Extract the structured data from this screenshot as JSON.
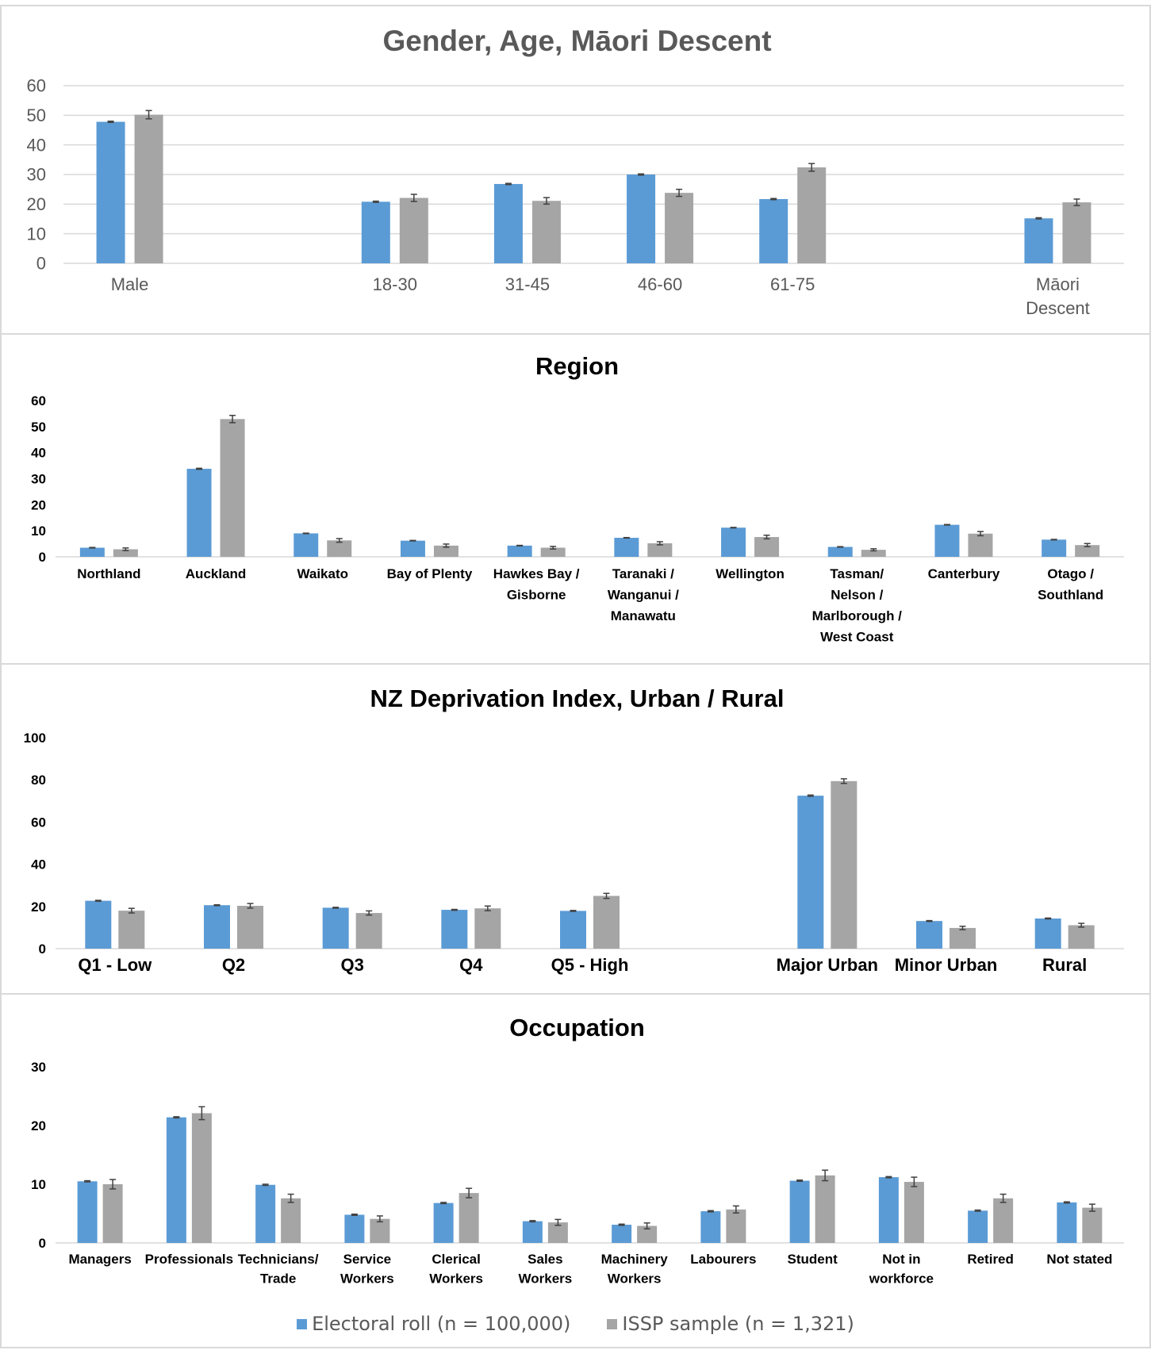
{
  "colors": {
    "electoral": "#5b9bd5",
    "issp": "#a5a5a5",
    "grid": "#d9d9d9",
    "text": "#595959",
    "label": "#000000"
  },
  "legend": {
    "electoral": "Electoral roll (n = 100,000)",
    "issp": "ISSP sample (n = 1,321)"
  },
  "chart_data": [
    {
      "type": "bar",
      "title": "Gender, Age, Māori Descent",
      "categories": [
        "Male",
        "",
        "18-30",
        "31-45",
        "46-60",
        "61-75",
        "",
        "Māori Descent"
      ],
      "ylim": [
        0,
        60
      ],
      "yticks": [
        0,
        10,
        20,
        30,
        40,
        50,
        60
      ],
      "grid": true,
      "series": [
        {
          "name": "Electoral roll (n = 100,000)",
          "values": [
            47.8,
            null,
            20.8,
            26.8,
            30.0,
            21.7,
            null,
            15.2
          ],
          "error": [
            0.2,
            null,
            0.2,
            0.2,
            0.2,
            0.2,
            null,
            0.2
          ]
        },
        {
          "name": "ISSP sample (n = 1,321)",
          "values": [
            50.2,
            null,
            22.1,
            21.1,
            23.8,
            32.4,
            null,
            20.6
          ],
          "error": [
            1.4,
            null,
            1.2,
            1.1,
            1.2,
            1.3,
            null,
            1.1
          ]
        }
      ]
    },
    {
      "type": "bar",
      "title": "Region",
      "categories": [
        "Northland",
        "Auckland",
        "Waikato",
        "Bay of Plenty",
        "Hawkes Bay / Gisborne",
        "Taranaki / Wanganui / Manawatu",
        "Wellington",
        "Tasman/ Nelson / Marlborough / West Coast",
        "Canterbury",
        "Otago / Southland"
      ],
      "ylim": [
        0,
        60
      ],
      "yticks": [
        0,
        10,
        20,
        30,
        40,
        50,
        60
      ],
      "grid": false,
      "series": [
        {
          "name": "Electoral roll (n = 100,000)",
          "values": [
            3.5,
            33.8,
            9.0,
            6.2,
            4.3,
            7.3,
            11.2,
            3.8,
            12.3,
            6.6
          ],
          "error": [
            0.1,
            0.2,
            0.1,
            0.1,
            0.1,
            0.1,
            0.1,
            0.1,
            0.1,
            0.1
          ]
        },
        {
          "name": "ISSP sample (n = 1,321)",
          "values": [
            2.9,
            52.9,
            6.3,
            4.3,
            3.5,
            5.2,
            7.6,
            2.7,
            8.9,
            4.5
          ],
          "error": [
            0.5,
            1.4,
            0.7,
            0.6,
            0.5,
            0.6,
            0.7,
            0.4,
            0.8,
            0.6
          ]
        }
      ]
    },
    {
      "type": "bar",
      "title": "NZ Deprivation Index, Urban / Rural",
      "categories": [
        "Q1 - Low",
        "Q2",
        "Q3",
        "Q4",
        "Q5 - High",
        "",
        "Major Urban",
        "Minor Urban",
        "Rural"
      ],
      "ylim": [
        0,
        100
      ],
      "yticks": [
        0,
        20,
        40,
        60,
        80,
        100
      ],
      "grid": false,
      "series": [
        {
          "name": "Electoral roll (n = 100,000)",
          "values": [
            22.7,
            20.6,
            19.4,
            18.4,
            17.9,
            null,
            72.5,
            13.1,
            14.3
          ],
          "error": [
            0.2,
            0.2,
            0.2,
            0.2,
            0.2,
            null,
            0.3,
            0.2,
            0.2
          ]
        },
        {
          "name": "ISSP sample (n = 1,321)",
          "values": [
            18.0,
            20.3,
            16.9,
            19.1,
            25.0,
            null,
            79.4,
            9.8,
            11.1
          ],
          "error": [
            1.1,
            1.1,
            1.0,
            1.1,
            1.2,
            null,
            1.1,
            0.8,
            0.9
          ]
        }
      ]
    },
    {
      "type": "bar",
      "title": "Occupation",
      "categories": [
        "Managers",
        "Professionals",
        "Technicians/ Trade",
        "Service Workers",
        "Clerical Workers",
        "Sales Workers",
        "Machinery Workers",
        "Labourers",
        "Student",
        "Not in workforce",
        "Retired",
        "Not stated"
      ],
      "ylim": [
        0,
        30
      ],
      "yticks": [
        0,
        10,
        20,
        30
      ],
      "grid": false,
      "series": [
        {
          "name": "Electoral roll (n = 100,000)",
          "values": [
            10.5,
            21.4,
            9.9,
            4.8,
            6.8,
            3.7,
            3.1,
            5.4,
            10.6,
            11.2,
            5.5,
            6.9
          ],
          "error": [
            0.1,
            0.1,
            0.1,
            0.1,
            0.1,
            0.1,
            0.1,
            0.1,
            0.1,
            0.1,
            0.1,
            0.1
          ]
        },
        {
          "name": "ISSP sample (n = 1,321)",
          "values": [
            10.0,
            22.1,
            7.6,
            4.1,
            8.5,
            3.5,
            2.9,
            5.7,
            11.5,
            10.4,
            7.6,
            6.0
          ],
          "error": [
            0.8,
            1.1,
            0.7,
            0.5,
            0.8,
            0.5,
            0.5,
            0.6,
            0.9,
            0.8,
            0.7,
            0.6
          ]
        }
      ]
    }
  ]
}
